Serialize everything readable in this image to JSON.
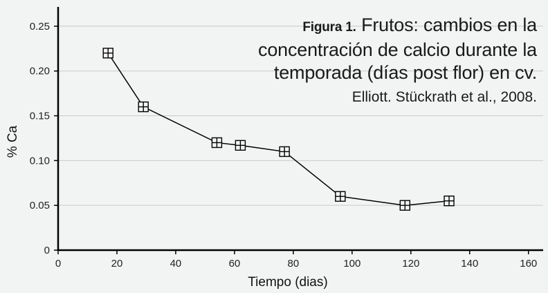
{
  "chart_data": {
    "type": "line",
    "figure_label": "Figura 1.",
    "title": "Frutos: cambios en la concentración de calcio durante la temporada (días post flor) en cv.",
    "subtitle": "Elliott. Stückrath et al., 2008.",
    "xlabel": "Tiempo (dias)",
    "ylabel": "% Ca",
    "xlim": [
      0,
      165
    ],
    "ylim": [
      0,
      0.27
    ],
    "xticks": [
      0,
      20,
      40,
      60,
      80,
      100,
      120,
      140,
      160
    ],
    "yticks": [
      0,
      0.05,
      0.1,
      0.15,
      0.2,
      0.25
    ],
    "ytick_labels": [
      "0",
      "0.05",
      "0.10",
      "0.15",
      "0.20",
      "0.25"
    ],
    "grid": "horizontal",
    "marker": "square-plus",
    "series": [
      {
        "x": [
          17,
          29,
          54,
          62,
          77,
          96,
          118,
          133
        ],
        "values": [
          0.22,
          0.16,
          0.12,
          0.117,
          0.11,
          0.06,
          0.05,
          0.055
        ]
      }
    ]
  }
}
